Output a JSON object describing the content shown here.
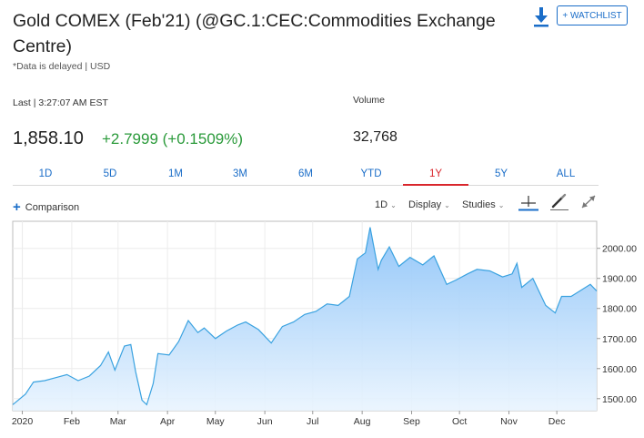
{
  "header": {
    "title": "Gold COMEX (Feb'21) (@GC.1:CEC:Commodities Exchange Centre)",
    "subtitle": "*Data is delayed | USD",
    "download_icon": "download-icon",
    "watchlist_label": "+ WATCHLIST"
  },
  "quote": {
    "last_label": "Last | 3:27:07 AM EST",
    "price": "1,858.10",
    "change": "+2.7999 (+0.1509%)",
    "volume_label": "Volume",
    "volume": "32,768",
    "change_color": "#2a9a3a"
  },
  "range_tabs": {
    "items": [
      "1D",
      "5D",
      "1M",
      "3M",
      "6M",
      "YTD",
      "1Y",
      "5Y",
      "ALL"
    ],
    "active": "1Y",
    "active_color": "#d9262c"
  },
  "toolbar": {
    "comparison_label": "Comparison",
    "interval_label": "1D",
    "display_label": "Display",
    "studies_label": "Studies",
    "icons": [
      "crosshair-icon",
      "pencil-icon",
      "expand-icon"
    ]
  },
  "chart_data": {
    "type": "area",
    "x_ticks": [
      "2020",
      "Feb",
      "Mar",
      "Apr",
      "May",
      "Jun",
      "Jul",
      "Aug",
      "Sep",
      "Oct",
      "Nov",
      "Dec"
    ],
    "y_ticks": [
      "2000.00",
      "1900.00",
      "1800.00",
      "1700.00",
      "1600.00",
      "1500.00"
    ],
    "ylim": [
      1460,
      2090
    ],
    "x_range": [
      "2019-12-26",
      "2020-12-26"
    ],
    "grid": true,
    "line_color": "#3aa2e0",
    "series": [
      {
        "x": [
          "2019-12-26",
          "2020-01-03",
          "2020-01-08",
          "2020-01-15",
          "2020-01-22",
          "2020-01-29",
          "2020-02-05",
          "2020-02-12",
          "2020-02-19",
          "2020-02-24",
          "2020-02-28",
          "2020-03-05",
          "2020-03-09",
          "2020-03-12",
          "2020-03-16",
          "2020-03-19",
          "2020-03-23",
          "2020-03-26",
          "2020-04-02",
          "2020-04-08",
          "2020-04-14",
          "2020-04-20",
          "2020-04-24",
          "2020-05-01",
          "2020-05-08",
          "2020-05-15",
          "2020-05-20",
          "2020-05-28",
          "2020-06-05",
          "2020-06-12",
          "2020-06-19",
          "2020-06-26",
          "2020-07-03",
          "2020-07-10",
          "2020-07-17",
          "2020-07-24",
          "2020-07-29",
          "2020-08-03",
          "2020-08-06",
          "2020-08-11",
          "2020-08-13",
          "2020-08-18",
          "2020-08-24",
          "2020-08-31",
          "2020-09-08",
          "2020-09-15",
          "2020-09-23",
          "2020-09-29",
          "2020-10-06",
          "2020-10-12",
          "2020-10-20",
          "2020-10-28",
          "2020-11-03",
          "2020-11-06",
          "2020-11-09",
          "2020-11-16",
          "2020-11-24",
          "2020-11-30",
          "2020-12-04",
          "2020-12-10",
          "2020-12-16",
          "2020-12-22",
          "2020-12-26"
        ],
        "values": [
          1480,
          1515,
          1555,
          1560,
          1570,
          1580,
          1560,
          1575,
          1610,
          1655,
          1595,
          1675,
          1680,
          1590,
          1495,
          1480,
          1550,
          1650,
          1645,
          1690,
          1760,
          1720,
          1735,
          1700,
          1725,
          1745,
          1755,
          1730,
          1685,
          1740,
          1755,
          1780,
          1790,
          1815,
          1810,
          1840,
          1965,
          1985,
          2070,
          1930,
          1960,
          2005,
          1940,
          1970,
          1945,
          1975,
          1880,
          1895,
          1915,
          1930,
          1925,
          1905,
          1915,
          1950,
          1870,
          1900,
          1810,
          1785,
          1840,
          1840,
          1860,
          1880,
          1858
        ]
      }
    ]
  }
}
